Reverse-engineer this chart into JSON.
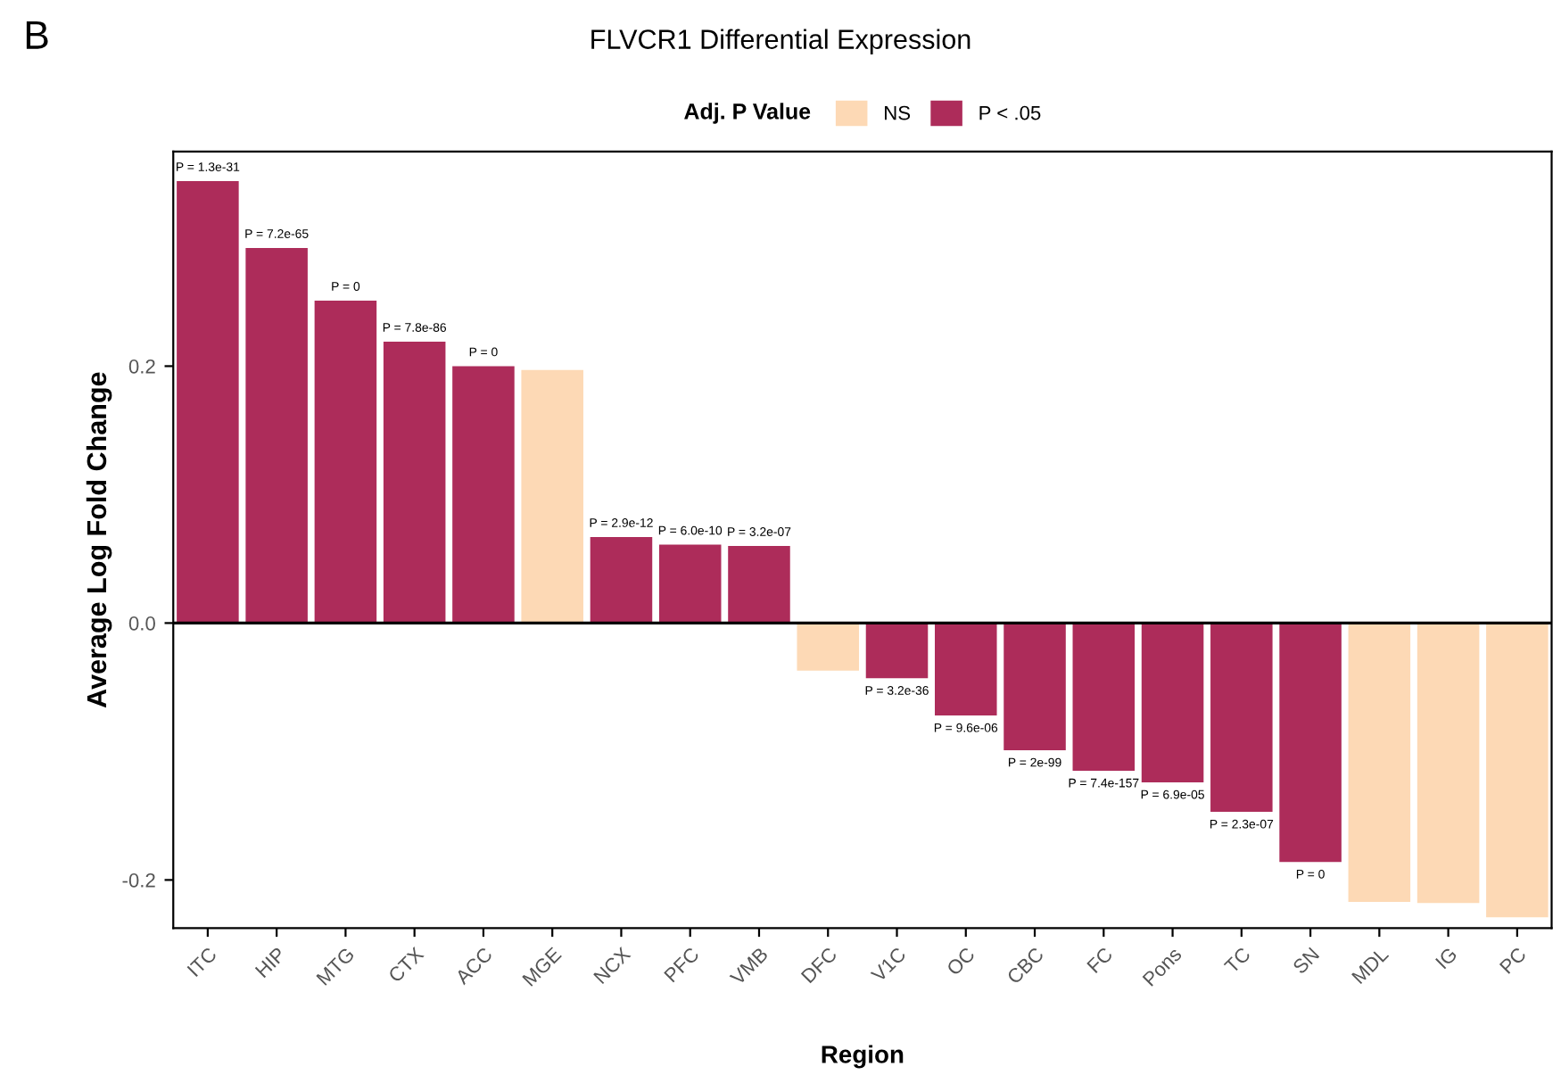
{
  "chart_data": {
    "type": "bar",
    "title": "FLVCR1 Differential Expression",
    "xlabel": "Region",
    "ylabel": "Average Log Fold Change",
    "legend_title": "Adj. P Value",
    "annotations": [
      "B"
    ],
    "categories": [
      "ITC",
      "HIP",
      "MTG",
      "CTX",
      "ACC",
      "MGE",
      "NCX",
      "PFC",
      "VMB",
      "DFC",
      "V1C",
      "OC",
      "CBC",
      "FC",
      "Pons",
      "TC",
      "SN",
      "MDL",
      "IG",
      "PC"
    ],
    "series": [
      {
        "name": "NS",
        "color": "#fdd9b5",
        "values": [
          null,
          null,
          null,
          null,
          null,
          0.197,
          null,
          null,
          null,
          -0.037,
          null,
          null,
          null,
          null,
          null,
          null,
          null,
          -0.217,
          -0.218,
          -0.229
        ],
        "value_labels": [
          null,
          null,
          null,
          null,
          null,
          null,
          null,
          null,
          null,
          null,
          null,
          null,
          null,
          null,
          null,
          null,
          null,
          null,
          null,
          null
        ]
      },
      {
        "name": "P < .05",
        "color": "#ad2c5a",
        "values": [
          0.344,
          0.292,
          0.251,
          0.219,
          0.2,
          null,
          0.067,
          0.061,
          0.06,
          null,
          -0.043,
          -0.072,
          -0.099,
          -0.115,
          -0.124,
          -0.147,
          -0.186,
          null,
          null,
          null
        ],
        "value_labels": [
          "P = 1.3e-31",
          "P = 7.2e-65",
          "P = 0",
          "P = 7.8e-86",
          "P = 0",
          null,
          "P = 2.9e-12",
          "P = 6.0e-10",
          "P = 3.2e-07",
          null,
          "P = 3.2e-36",
          "P = 9.6e-06",
          "P = 2e-99",
          "P = 7.4e-157",
          "P = 6.9e-05",
          "P = 2.3e-07",
          "P = 0",
          null,
          null,
          null
        ]
      }
    ],
    "ylim": [
      -0.2375,
      0.367
    ],
    "yticks": [
      {
        "value": -0.2,
        "label": "-0.2"
      },
      {
        "value": 0,
        "label": "0.0"
      },
      0.2
    ],
    "ref_lines": [
      {
        "axis": "y",
        "value": 0,
        "label": null,
        "color": "#000000"
      }
    ],
    "grid": false,
    "legend": "top"
  }
}
